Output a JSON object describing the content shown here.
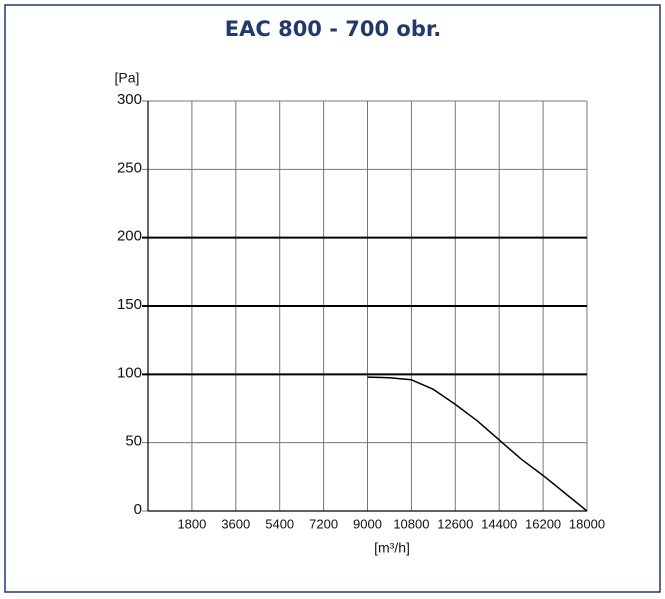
{
  "chart_data": {
    "type": "line",
    "title": "EAC 800 - 700 obr.",
    "y_label": "[Pa]",
    "x_label": "[m³/h]",
    "xlim": [
      0,
      18000
    ],
    "xticks": [
      1800,
      3600,
      5400,
      7200,
      9000,
      10800,
      12600,
      14400,
      16200,
      18000
    ],
    "ylim": [
      0,
      300
    ],
    "yticks": [
      0,
      50,
      100,
      150,
      200,
      250,
      300
    ],
    "grid": true,
    "major_grid": [
      100,
      150,
      200
    ],
    "series": [
      {
        "color": "#000000",
        "x": [
          9000,
          9900,
          10800,
          11700,
          12600,
          13500,
          14400,
          15300,
          16200,
          17100,
          18000
        ],
        "values": [
          98,
          97.5,
          96,
          89,
          78,
          66,
          52,
          38,
          26,
          13,
          0
        ]
      }
    ]
  }
}
